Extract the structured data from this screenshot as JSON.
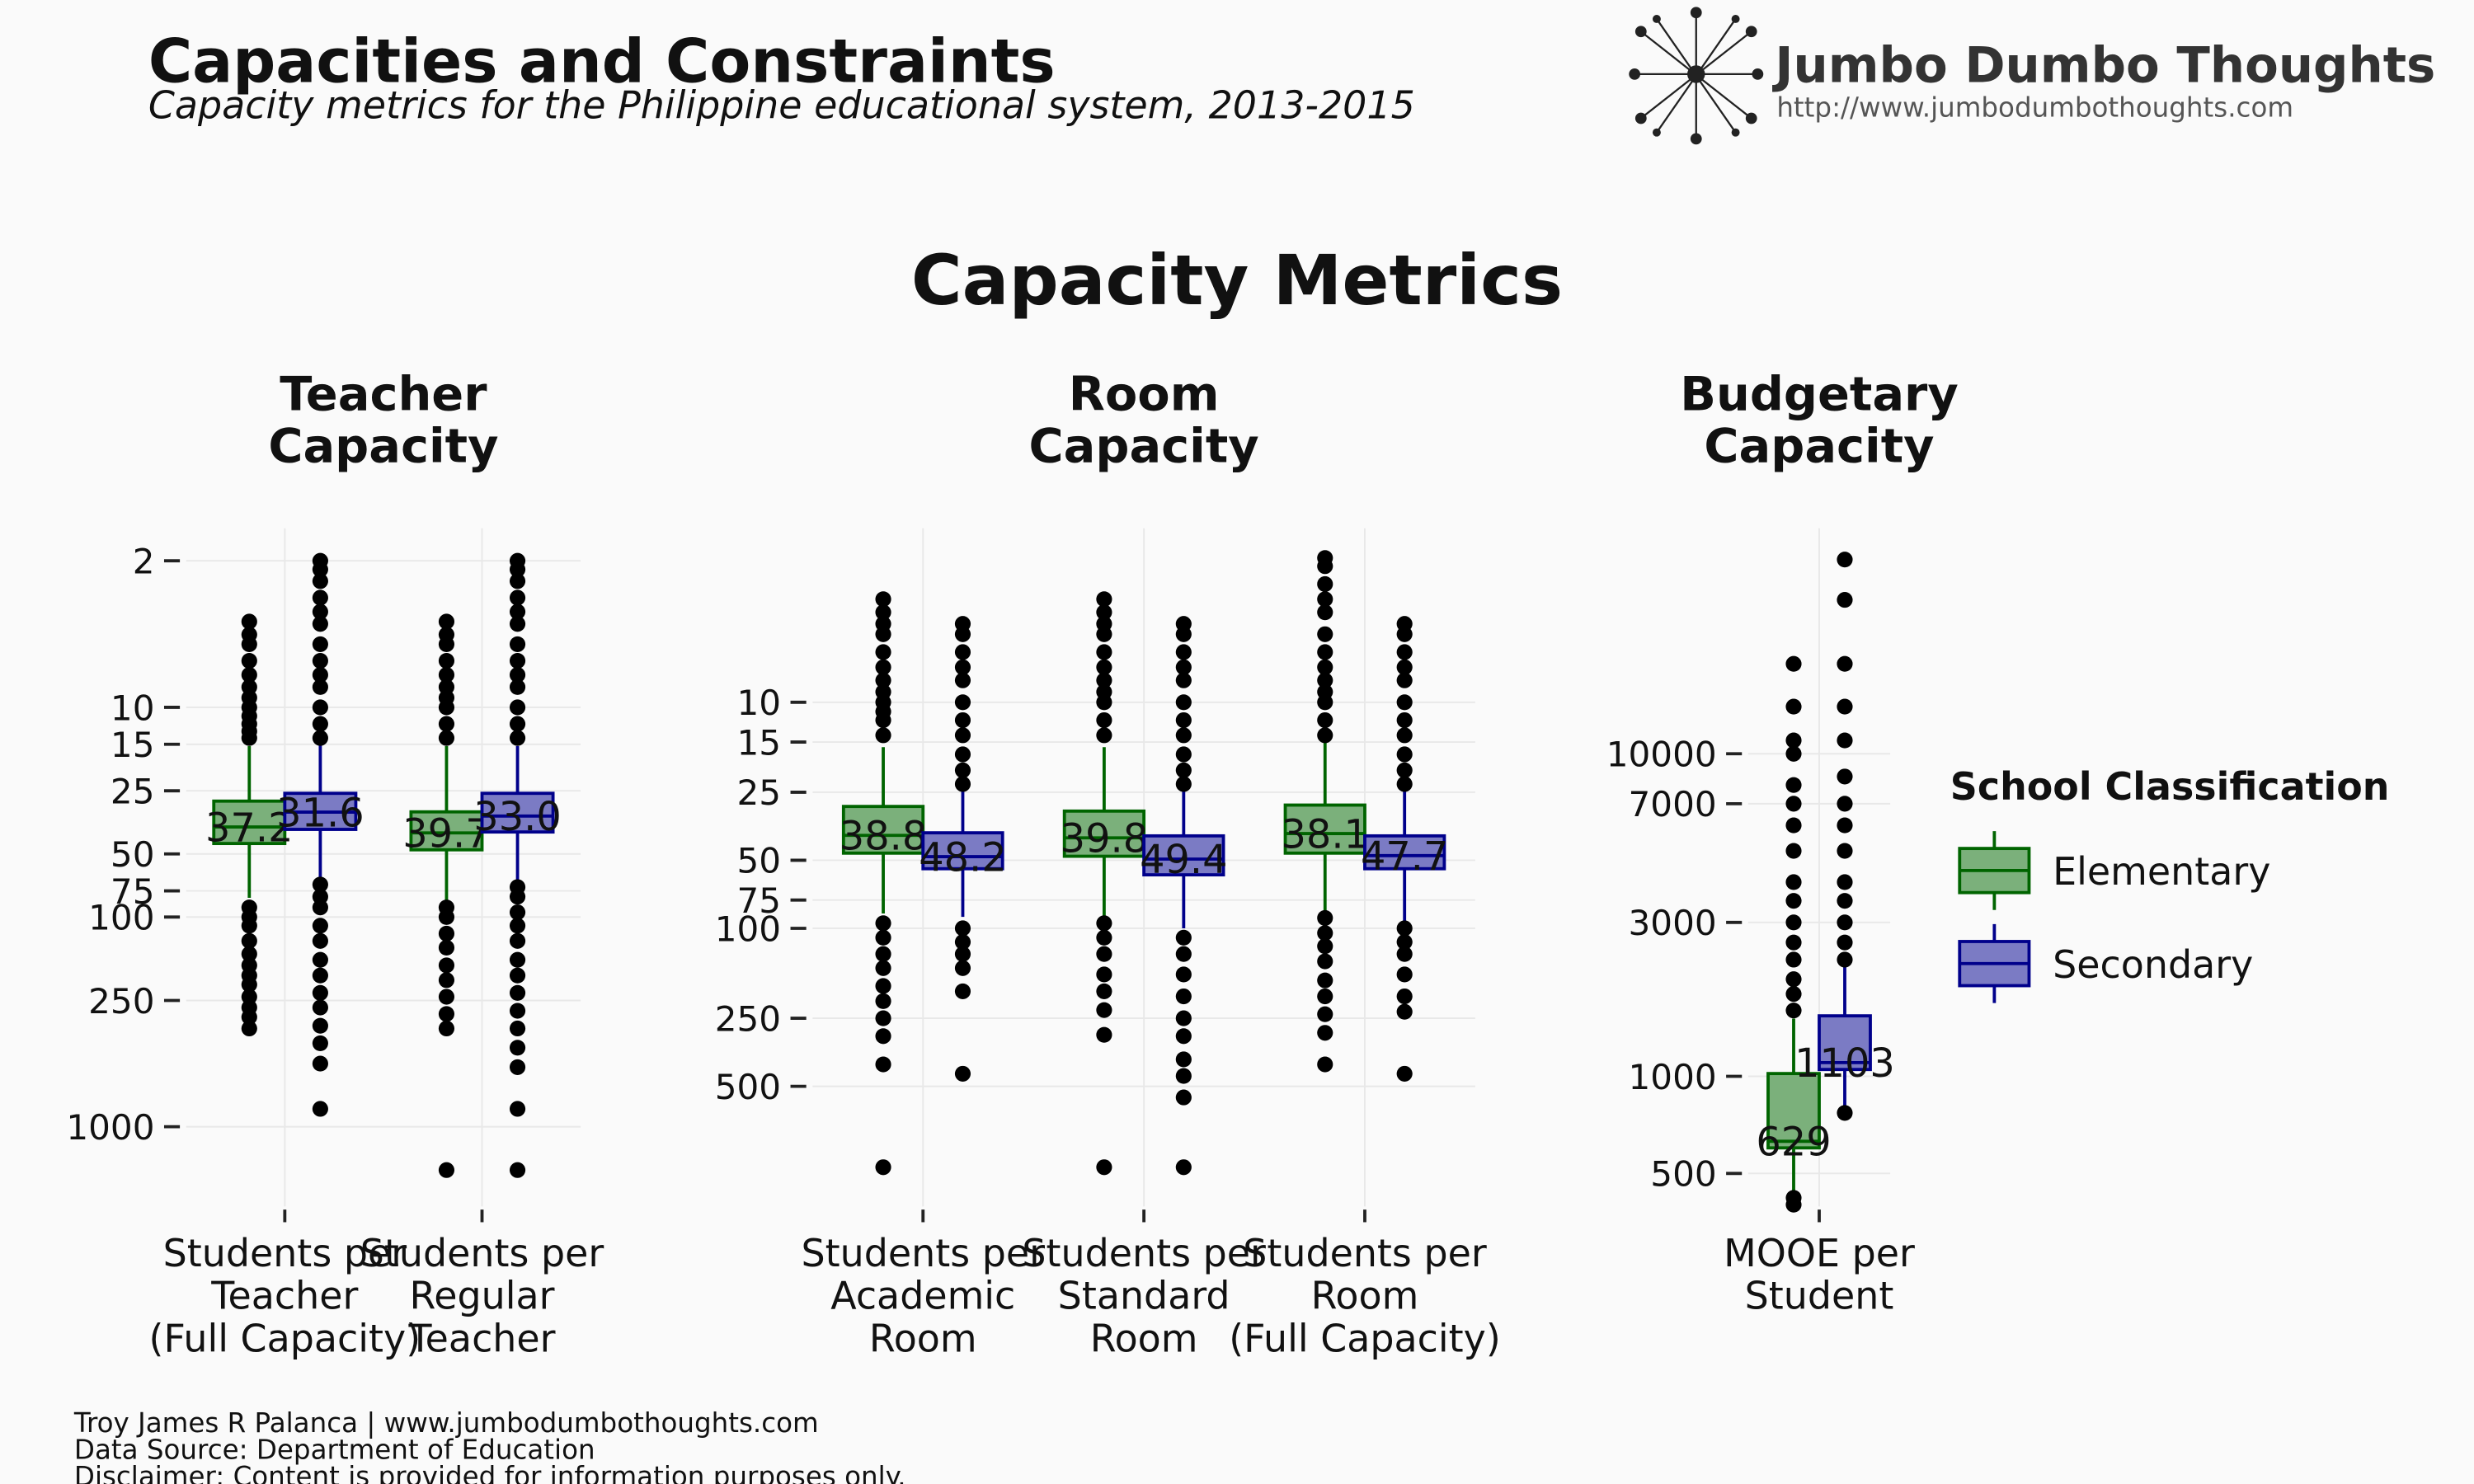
{
  "header": {
    "title": "Capacities and Constraints",
    "subtitle": "Capacity metrics for the Philippine educational system, 2013-2015",
    "logo_name": "Jumbo Dumbo Thoughts",
    "logo_url": "http://www.jumbodumbothoughts.com"
  },
  "footer": [
    "Troy James R Palanca | www.jumbodumbothoughts.com",
    "Data Source: Department of Education",
    "Disclaimer: Content is provided for information purposes only."
  ],
  "chart_data": {
    "type": "box",
    "title": "Capacity Metrics",
    "legend_title": "School Classification",
    "legend": "right",
    "series": [
      {
        "name": "Elementary",
        "color": "#006400",
        "fill": "#7bb07b"
      },
      {
        "name": "Secondary",
        "color": "#00008b",
        "fill": "#7b7bc4"
      }
    ],
    "panels": [
      {
        "title": "Teacher\nCapacity",
        "categories": [
          "Students per\nTeacher\n(Full Capacity)",
          "Students per\nRegular\nTeacher"
        ],
        "log_scale": true,
        "reversed": true,
        "ylim": [
          1.4,
          2400
        ],
        "yticks": [
          2,
          10,
          15,
          25,
          50,
          75,
          100,
          250,
          1000
        ],
        "grid": true,
        "series": [
          {
            "values": [
              [
                15.3,
                28,
                37.2,
                44.6,
                81
              ],
              [
                15.3,
                31.5,
                39.7,
                47.8,
                86
              ]
            ],
            "value_labels": [
              "37.2",
              "39.7"
            ],
            "outliers": [
              [
                3.9,
                4.5,
                5,
                6,
                7,
                8,
                9,
                10,
                11,
                12,
                13,
                14,
                90,
                100,
                110,
                130,
                150,
                170,
                190,
                210,
                240,
                270,
                300,
                340
              ],
              [
                3.9,
                4.5,
                5,
                6,
                7,
                8,
                9,
                10,
                12,
                14,
                90,
                100,
                120,
                140,
                170,
                200,
                240,
                290,
                340,
                1610
              ]
            ]
          },
          {
            "values": [
              [
                15,
                25.7,
                31.6,
                38.2,
                66
              ],
              [
                15.3,
                25.7,
                33.0,
                39.3,
                68
              ]
            ],
            "value_labels": [
              "31.6",
              "33.0"
            ],
            "outliers": [
              [
                2,
                2.2,
                2.5,
                3,
                3.5,
                4,
                5,
                6,
                7,
                8,
                10,
                12,
                14,
                70,
                80,
                90,
                110,
                130,
                160,
                190,
                230,
                270,
                330,
                400,
                500,
                822
              ],
              [
                2,
                2.2,
                2.5,
                3,
                3.5,
                4,
                5,
                6,
                7,
                8,
                10,
                12,
                14,
                72,
                80,
                95,
                110,
                130,
                160,
                190,
                230,
                280,
                340,
                420,
                520,
                822,
                1610
              ]
            ]
          }
        ]
      },
      {
        "title": "Room\nCapacity",
        "categories": [
          "Students per\nAcademic\nRoom",
          "Students per\nStandard\nRoom",
          "Students per\nRoom\n(Full Capacity)"
        ],
        "log_scale": true,
        "reversed": true,
        "ylim": [
          1.7,
          1700
        ],
        "yticks": [
          10,
          15,
          25,
          50,
          75,
          100,
          250,
          500
        ],
        "grid": true,
        "series": [
          {
            "values": [
              [
                15.8,
                28.9,
                38.8,
                46.5,
                86
              ],
              [
                15.8,
                30.3,
                39.8,
                48,
                89
              ],
              [
                14.6,
                28.5,
                38.1,
                46.5,
                84
              ]
            ],
            "value_labels": [
              "38.8",
              "39.8",
              "38.1"
            ],
            "outliers": [
              [
                3.5,
                4,
                4.5,
                5,
                6,
                7,
                8,
                9,
                10,
                11,
                12,
                14,
                95,
                110,
                130,
                150,
                180,
                210,
                250,
                300,
                400,
                1140
              ],
              [
                3.5,
                4,
                4.5,
                5,
                6,
                7,
                8,
                9,
                10,
                12,
                14,
                95,
                110,
                130,
                160,
                190,
                230,
                296,
                1140
              ],
              [
                2.3,
                2.5,
                3,
                3.5,
                4,
                5,
                6,
                7,
                8,
                9,
                10,
                12,
                14,
                90,
                105,
                120,
                140,
                170,
                200,
                240,
                290,
                400
              ]
            ]
          },
          {
            "values": [
              [
                24.7,
                37.8,
                48.2,
                54.5,
                89
              ],
              [
                24.7,
                39,
                49.4,
                58,
                100
              ],
              [
                24.7,
                39,
                47.7,
                54.5,
                93
              ]
            ],
            "value_labels": [
              "48.2",
              "49.4",
              "47.7"
            ],
            "outliers": [
              [
                4.5,
                5,
                6,
                7,
                8,
                10,
                12,
                14,
                17,
                20,
                23,
                100,
                115,
                130,
                150,
                190,
                440
              ],
              [
                4.5,
                5,
                6,
                7,
                8,
                10,
                12,
                14,
                17,
                20,
                23,
                110,
                130,
                160,
                200,
                250,
                300,
                380,
                450,
                560,
                1140
              ],
              [
                4.5,
                5,
                6,
                7,
                8,
                10,
                12,
                14,
                17,
                20,
                23,
                100,
                115,
                130,
                160,
                200,
                234,
                440
              ]
            ]
          }
        ]
      },
      {
        "title": "Budgetary\nCapacity",
        "categories": [
          "MOOE per\nStudent"
        ],
        "log_scale": true,
        "reversed": false,
        "ylim": [
          395,
          50000
        ],
        "yticks": [
          500,
          1000,
          3000,
          7000,
          10000
        ],
        "grid": true,
        "series": [
          {
            "values": [
              [
                443,
                600,
                629,
                1020,
                1510
              ]
            ],
            "value_labels": [
              "629"
            ],
            "outliers": [
              [
                400,
                420,
                1600,
                1800,
                2000,
                2300,
                2600,
                3000,
                3500,
                4000,
                5000,
                6000,
                7000,
                8000,
                10000,
                11000,
                14000,
                19000
              ]
            ]
          },
          {
            "values": [
              [
                773,
                1050,
                1103,
                1540,
                2220
              ]
            ],
            "value_labels": [
              "1103"
            ],
            "outliers": [
              [
                770,
                2300,
                2600,
                3000,
                3500,
                4000,
                5000,
                6000,
                7000,
                8500,
                11000,
                14000,
                19000,
                30000,
                40000
              ]
            ]
          }
        ]
      }
    ]
  }
}
